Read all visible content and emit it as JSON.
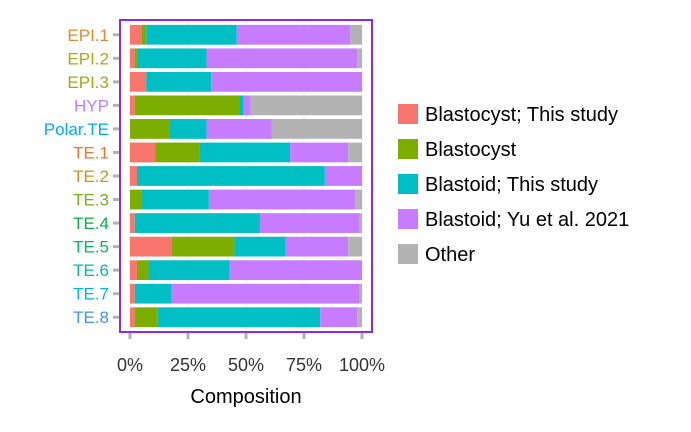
{
  "chart_data": {
    "type": "bar",
    "orientation": "horizontal",
    "stacked": true,
    "categories": [
      "EPI.1",
      "EPI.2",
      "EPI.3",
      "HYP",
      "Polar.TE",
      "TE.1",
      "TE.2",
      "TE.3",
      "TE.4",
      "TE.5",
      "TE.6",
      "TE.7",
      "TE.8"
    ],
    "category_colors": [
      "#E08B2E",
      "#AAA91A",
      "#9BAA18",
      "#C77CFF",
      "#00A9FF",
      "#E8772E",
      "#CE9316",
      "#7AAC1E",
      "#00B43C",
      "#00BA62",
      "#00BCA3",
      "#00B5D7",
      "#3D95E8"
    ],
    "series": [
      {
        "name": "Blastocyst; This study",
        "color": "#F8766D",
        "values": [
          0.05,
          0.02,
          0.07,
          0.02,
          0.0,
          0.11,
          0.03,
          0.0,
          0.02,
          0.18,
          0.03,
          0.02,
          0.02
        ]
      },
      {
        "name": "Blastocyst",
        "color": "#7CAE00",
        "values": [
          0.02,
          0.01,
          0.0,
          0.45,
          0.17,
          0.19,
          0.0,
          0.05,
          0.0,
          0.27,
          0.05,
          0.0,
          0.1
        ]
      },
      {
        "name": "Blastoid; This study",
        "color": "#00BFC4",
        "values": [
          0.39,
          0.3,
          0.28,
          0.02,
          0.16,
          0.39,
          0.81,
          0.29,
          0.54,
          0.22,
          0.35,
          0.16,
          0.7
        ]
      },
      {
        "name": "Blastoid; Yu et al. 2021",
        "color": "#C77CFF",
        "values": [
          0.49,
          0.65,
          0.65,
          0.03,
          0.28,
          0.25,
          0.16,
          0.63,
          0.43,
          0.27,
          0.57,
          0.81,
          0.16
        ]
      },
      {
        "name": "Other",
        "color": "#B3B3B3",
        "values": [
          0.05,
          0.02,
          0.0,
          0.48,
          0.39,
          0.06,
          0.0,
          0.03,
          0.01,
          0.06,
          0.0,
          0.01,
          0.02
        ]
      }
    ],
    "xlabel": "Composition",
    "ylabel": "",
    "xlim": [
      0,
      1
    ],
    "x_ticks": [
      "0%",
      "25%",
      "50%",
      "75%",
      "100%"
    ],
    "legend_position": "right",
    "grid": true,
    "frame_color": "#8B2BE2"
  }
}
